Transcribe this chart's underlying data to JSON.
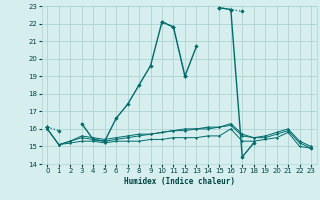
{
  "xlabel": "Humidex (Indice chaleur)",
  "bg_color": "#d6eeee",
  "grid_color": "#aed4d4",
  "line_color": "#006b6b",
  "xlim": [
    -0.5,
    23.5
  ],
  "ylim": [
    14,
    23
  ],
  "yticks": [
    14,
    15,
    16,
    17,
    18,
    19,
    20,
    21,
    22,
    23
  ],
  "xticks": [
    0,
    1,
    2,
    3,
    4,
    5,
    6,
    7,
    8,
    9,
    10,
    11,
    12,
    13,
    14,
    15,
    16,
    17,
    18,
    19,
    20,
    21,
    22,
    23
  ],
  "series": [
    {
      "x": [
        0,
        1,
        2,
        3,
        4,
        5,
        6,
        7,
        8,
        9,
        10,
        11,
        12,
        13,
        14,
        15,
        16,
        17,
        18,
        19,
        20,
        21,
        22,
        23
      ],
      "y": [
        16.1,
        15.9,
        null,
        null,
        null,
        null,
        null,
        null,
        null,
        null,
        22.1,
        21.8,
        19.0,
        null,
        null,
        22.9,
        22.8,
        22.7,
        null,
        null,
        null,
        null,
        null,
        null
      ],
      "style": ":",
      "marker": "D",
      "markersize": 2.2,
      "linewidth": 0.9
    },
    {
      "x": [
        0,
        1,
        2,
        3,
        4,
        5,
        6,
        7,
        8,
        9,
        10,
        11,
        12,
        13,
        14,
        15,
        16,
        17,
        18,
        19,
        20,
        21,
        22,
        23
      ],
      "y": [
        16.1,
        null,
        null,
        16.3,
        15.4,
        15.3,
        16.6,
        17.4,
        18.5,
        19.6,
        22.1,
        21.8,
        19.0,
        20.7,
        null,
        null,
        null,
        null,
        null,
        null,
        null,
        null,
        null,
        null
      ],
      "style": "-",
      "marker": "D",
      "markersize": 2.2,
      "linewidth": 1.0
    },
    {
      "x": [
        0,
        1,
        2,
        3,
        4,
        5,
        6,
        7,
        8,
        9,
        10,
        11,
        12,
        13,
        14,
        15,
        16,
        17,
        18,
        19,
        20,
        21,
        22,
        23
      ],
      "y": [
        16.1,
        null,
        null,
        null,
        null,
        null,
        null,
        null,
        null,
        null,
        null,
        null,
        null,
        null,
        null,
        22.9,
        22.8,
        14.4,
        15.2,
        null,
        null,
        null,
        null,
        14.9
      ],
      "style": "-",
      "marker": "D",
      "markersize": 2.2,
      "linewidth": 1.0
    },
    {
      "x": [
        0,
        1,
        2,
        3,
        4,
        5,
        6,
        7,
        8,
        9,
        10,
        11,
        12,
        13,
        14,
        15,
        16,
        17,
        18,
        19,
        20,
        21,
        22,
        23
      ],
      "y": [
        16.0,
        15.1,
        15.2,
        15.3,
        15.3,
        15.2,
        15.3,
        15.3,
        15.3,
        15.4,
        15.4,
        15.5,
        15.5,
        15.5,
        15.6,
        15.6,
        16.0,
        15.3,
        15.3,
        15.4,
        15.5,
        15.8,
        15.0,
        14.9
      ],
      "style": "-",
      "marker": "D",
      "markersize": 1.5,
      "linewidth": 0.7
    },
    {
      "x": [
        0,
        1,
        2,
        3,
        4,
        5,
        6,
        7,
        8,
        9,
        10,
        11,
        12,
        13,
        14,
        15,
        16,
        17,
        18,
        19,
        20,
        21,
        22,
        23
      ],
      "y": [
        16.0,
        15.1,
        15.3,
        15.5,
        15.4,
        15.3,
        15.4,
        15.5,
        15.6,
        15.7,
        15.8,
        15.9,
        15.9,
        16.0,
        16.0,
        16.1,
        16.2,
        15.6,
        15.5,
        15.5,
        15.7,
        15.9,
        15.2,
        14.9
      ],
      "style": "-",
      "marker": "D",
      "markersize": 1.5,
      "linewidth": 0.7
    },
    {
      "x": [
        0,
        1,
        2,
        3,
        4,
        5,
        6,
        7,
        8,
        9,
        10,
        11,
        12,
        13,
        14,
        15,
        16,
        17,
        18,
        19,
        20,
        21,
        22,
        23
      ],
      "y": [
        16.0,
        15.1,
        15.3,
        15.6,
        15.5,
        15.4,
        15.5,
        15.6,
        15.7,
        15.7,
        15.8,
        15.9,
        16.0,
        16.0,
        16.1,
        16.1,
        16.3,
        15.7,
        15.5,
        15.6,
        15.8,
        16.0,
        15.3,
        15.0
      ],
      "style": "-",
      "marker": "D",
      "markersize": 1.5,
      "linewidth": 0.7
    }
  ]
}
